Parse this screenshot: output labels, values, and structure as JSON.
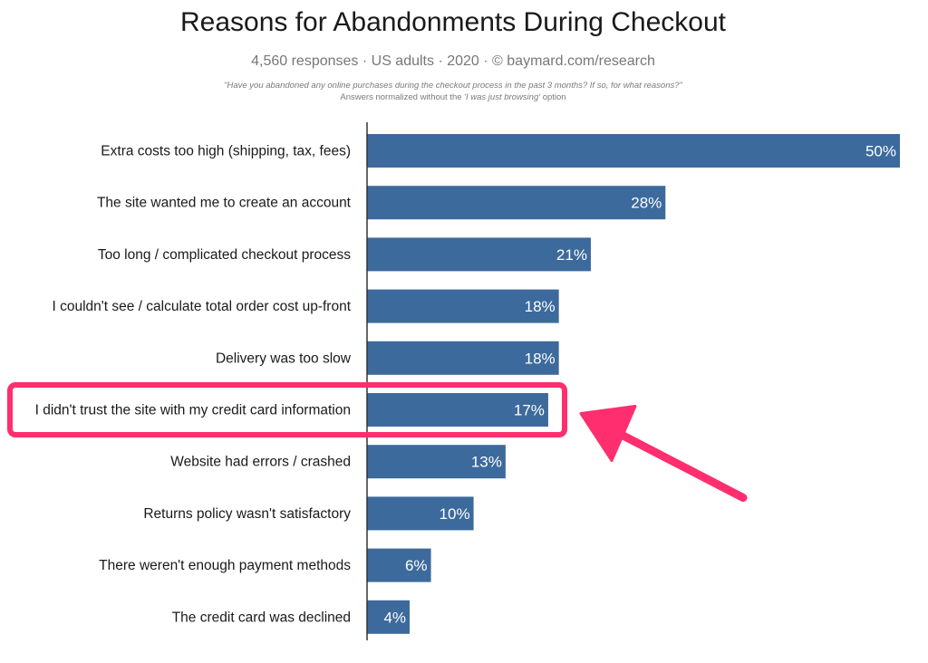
{
  "header": {
    "title": "Reasons for Abandonments During Checkout",
    "subtitle": "4,560 responses  ·  US adults  ·  2020  ·  ©  baymard.com/research",
    "question": "\"Have you abandoned any online purchases during the checkout process in the past 3 months? If so, for what reasons?\"",
    "note_prefix": "Answers normalized without the ",
    "note_italic": "'I was just browsing'",
    "note_suffix": " option"
  },
  "colors": {
    "bar": "#3d6a9c",
    "highlight": "#ff2e6e",
    "axis": "#333333"
  },
  "annotation": {
    "highlighted_category": "I didn't trust the site with my credit card information",
    "shape": "rounded-rectangle-with-arrow"
  },
  "chart_data": {
    "type": "bar",
    "orientation": "horizontal",
    "title": "Reasons for Abandonments During Checkout",
    "xlabel": "",
    "ylabel": "",
    "xlim": [
      0,
      50
    ],
    "grid": false,
    "legend": "none",
    "value_suffix": "%",
    "categories": [
      "Extra costs too high (shipping, tax, fees)",
      "The site wanted me to create an account",
      "Too long / complicated checkout process",
      "I couldn't see / calculate total order cost up-front",
      "Delivery was too slow",
      "I didn't trust the site with my credit card information",
      "Website had errors / crashed",
      "Returns policy wasn't satisfactory",
      "There weren't enough payment methods",
      "The credit card was declined"
    ],
    "values": [
      50,
      28,
      21,
      18,
      18,
      17,
      13,
      10,
      6,
      4
    ],
    "value_labels": [
      "50%",
      "28%",
      "21%",
      "18%",
      "18%",
      "17%",
      "13%",
      "10%",
      "6%",
      "4%"
    ]
  }
}
